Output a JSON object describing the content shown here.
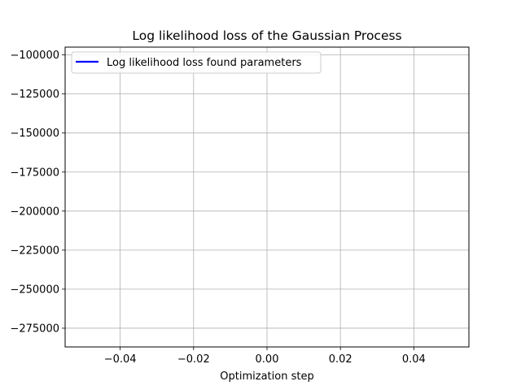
{
  "chart_data": {
    "type": "line",
    "title": "Log likelihood loss of the Gaussian Process",
    "xlabel": "Optimization step",
    "ylabel": "",
    "xlim": [
      -0.055,
      0.055
    ],
    "ylim": [
      -287000,
      -95000
    ],
    "x_ticks": [
      -0.04,
      -0.02,
      0.0,
      0.02,
      0.04
    ],
    "x_tick_labels": [
      "−0.04",
      "−0.02",
      "0.00",
      "0.02",
      "0.04"
    ],
    "y_ticks": [
      -100000,
      -125000,
      -150000,
      -175000,
      -200000,
      -225000,
      -250000,
      -275000
    ],
    "y_tick_labels": [
      "−100000",
      "−125000",
      "−150000",
      "−175000",
      "−200000",
      "−225000",
      "−250000",
      "−275000"
    ],
    "grid": true,
    "legend_position": "top-left",
    "series": [
      {
        "name": "Log likelihood loss found parameters",
        "color": "#0000ff",
        "x": [],
        "y": []
      }
    ]
  }
}
